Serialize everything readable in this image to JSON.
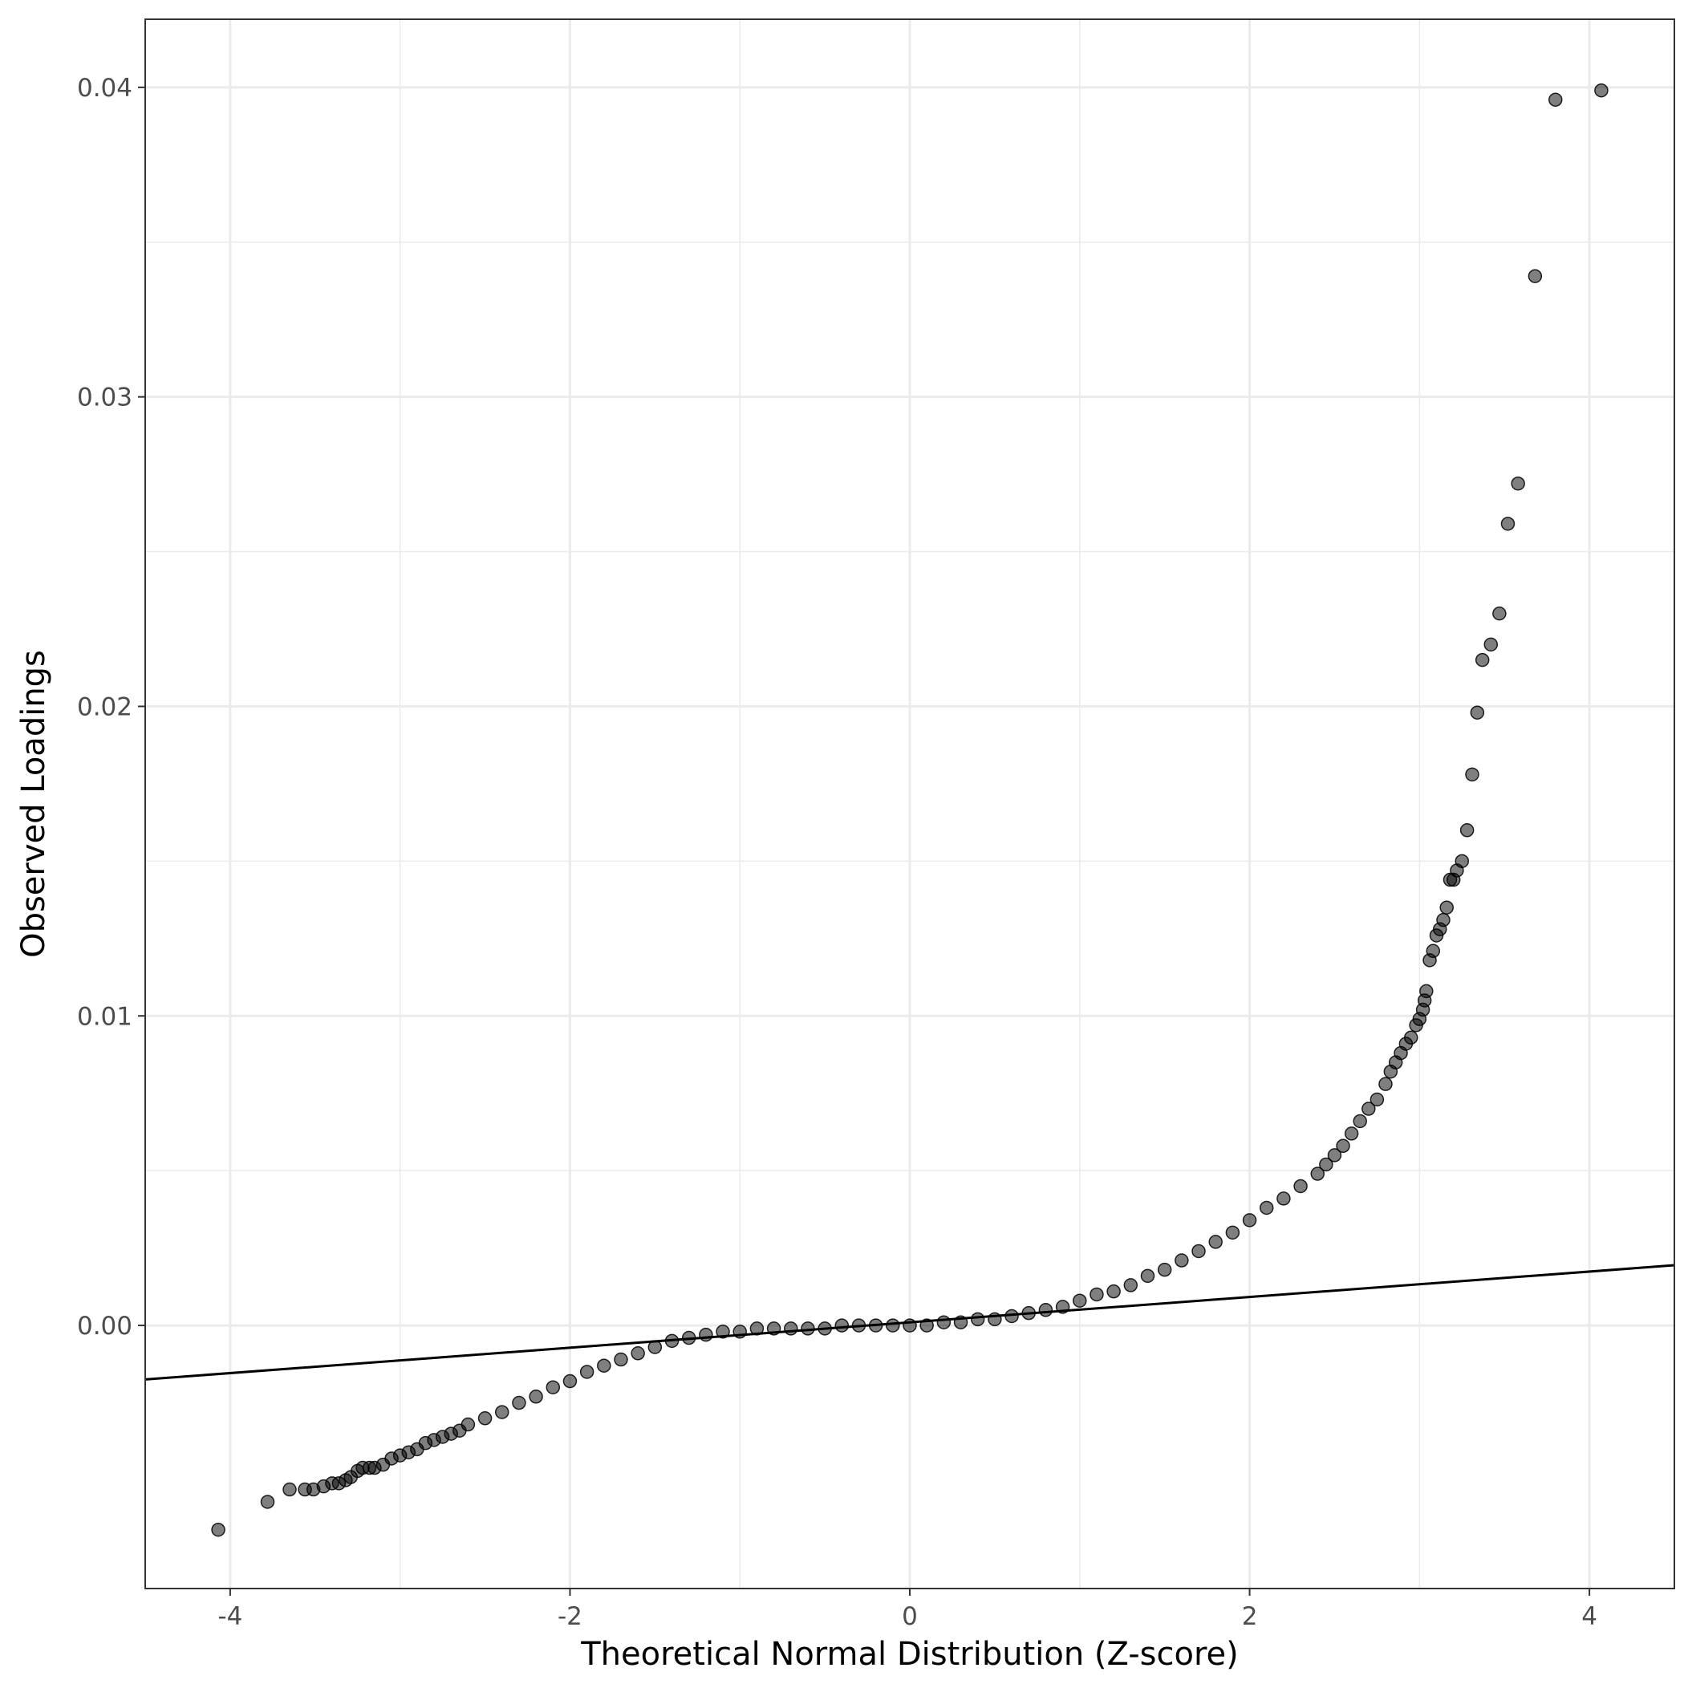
{
  "chart_data": {
    "type": "scatter",
    "title": "",
    "xlabel": "Theoretical Normal Distribution (Z-score)",
    "ylabel": "Observed Loadings",
    "xlim": [
      -4.5,
      4.5
    ],
    "ylim": [
      -0.0085,
      0.0422
    ],
    "x_ticks": [
      -4,
      -2,
      0,
      2,
      4
    ],
    "x_tick_labels": [
      "-4",
      "-2",
      "0",
      "2",
      "4"
    ],
    "y_ticks": [
      0.0,
      0.01,
      0.02,
      0.03,
      0.04
    ],
    "y_tick_labels": [
      "0.00",
      "0.01",
      "0.02",
      "0.03",
      "0.04"
    ],
    "grid": true,
    "legend": "none",
    "point_color": "#000000",
    "point_opacity": 0.5,
    "reference_line": {
      "intercept": 0.0001,
      "slope": 0.00041,
      "color": "#000000"
    },
    "series": [
      {
        "x": [
          -4.07,
          -3.78,
          -3.65,
          -3.56,
          -3.51,
          -3.45,
          -3.4,
          -3.36,
          -3.32,
          -3.29,
          -3.25,
          -3.22,
          -3.18,
          -3.15,
          -3.1,
          -3.05,
          -3.0,
          -2.95,
          -2.9,
          -2.85,
          -2.8,
          -2.75,
          -2.7,
          -2.65,
          -2.6,
          -2.5,
          -2.4,
          -2.3,
          -2.2,
          -2.1,
          -2.0,
          -1.9,
          -1.8,
          -1.7,
          -1.6,
          -1.5,
          -1.4,
          -1.3,
          -1.2,
          -1.1,
          -1.0,
          -0.9,
          -0.8,
          -0.7,
          -0.6,
          -0.5,
          -0.4,
          -0.3,
          -0.2,
          -0.1,
          0.0,
          0.1,
          0.2,
          0.3,
          0.4,
          0.5,
          0.6,
          0.7,
          0.8,
          0.9,
          1.0,
          1.1,
          1.2,
          1.3,
          1.4,
          1.5,
          1.6,
          1.7,
          1.8,
          1.9,
          2.0,
          2.1,
          2.2,
          2.3,
          2.4,
          2.45,
          2.5,
          2.55,
          2.6,
          2.65,
          2.7,
          2.75,
          2.8,
          2.83,
          2.86,
          2.89,
          2.92,
          2.95,
          2.98,
          3.0,
          3.02,
          3.03,
          3.04,
          3.06,
          3.08,
          3.1,
          3.12,
          3.14,
          3.16,
          3.18,
          3.2,
          3.22,
          3.25,
          3.28,
          3.31,
          3.34,
          3.37,
          3.42,
          3.47,
          3.52,
          3.58,
          3.68,
          3.8,
          4.07
        ],
        "y": [
          -0.0066,
          -0.0057,
          -0.0053,
          -0.0053,
          -0.0053,
          -0.0052,
          -0.0051,
          -0.0051,
          -0.005,
          -0.0049,
          -0.0047,
          -0.0046,
          -0.0046,
          -0.0046,
          -0.0045,
          -0.0043,
          -0.0042,
          -0.0041,
          -0.004,
          -0.0038,
          -0.0037,
          -0.0036,
          -0.0035,
          -0.0034,
          -0.0032,
          -0.003,
          -0.0028,
          -0.0025,
          -0.0023,
          -0.002,
          -0.0018,
          -0.0015,
          -0.0013,
          -0.0011,
          -0.0009,
          -0.0007,
          -0.0005,
          -0.0004,
          -0.0003,
          -0.0002,
          -0.0002,
          -0.0001,
          -0.0001,
          -0.0001,
          -0.0001,
          -0.0001,
          0.0,
          0.0,
          0.0,
          0.0,
          0.0,
          0.0,
          0.0001,
          0.0001,
          0.0002,
          0.0002,
          0.0003,
          0.0004,
          0.0005,
          0.0006,
          0.0008,
          0.001,
          0.0011,
          0.0013,
          0.0016,
          0.0018,
          0.0021,
          0.0024,
          0.0027,
          0.003,
          0.0034,
          0.0038,
          0.0041,
          0.0045,
          0.0049,
          0.0052,
          0.0055,
          0.0058,
          0.0062,
          0.0066,
          0.007,
          0.0073,
          0.0078,
          0.0082,
          0.0085,
          0.0088,
          0.0091,
          0.0093,
          0.0097,
          0.0099,
          0.0102,
          0.0105,
          0.0108,
          0.0118,
          0.0121,
          0.0126,
          0.0128,
          0.0131,
          0.0135,
          0.0144,
          0.0144,
          0.0147,
          0.015,
          0.016,
          0.0178,
          0.0198,
          0.0215,
          0.022,
          0.023,
          0.0259,
          0.0272,
          0.0339,
          0.0396,
          0.0399
        ]
      }
    ]
  }
}
